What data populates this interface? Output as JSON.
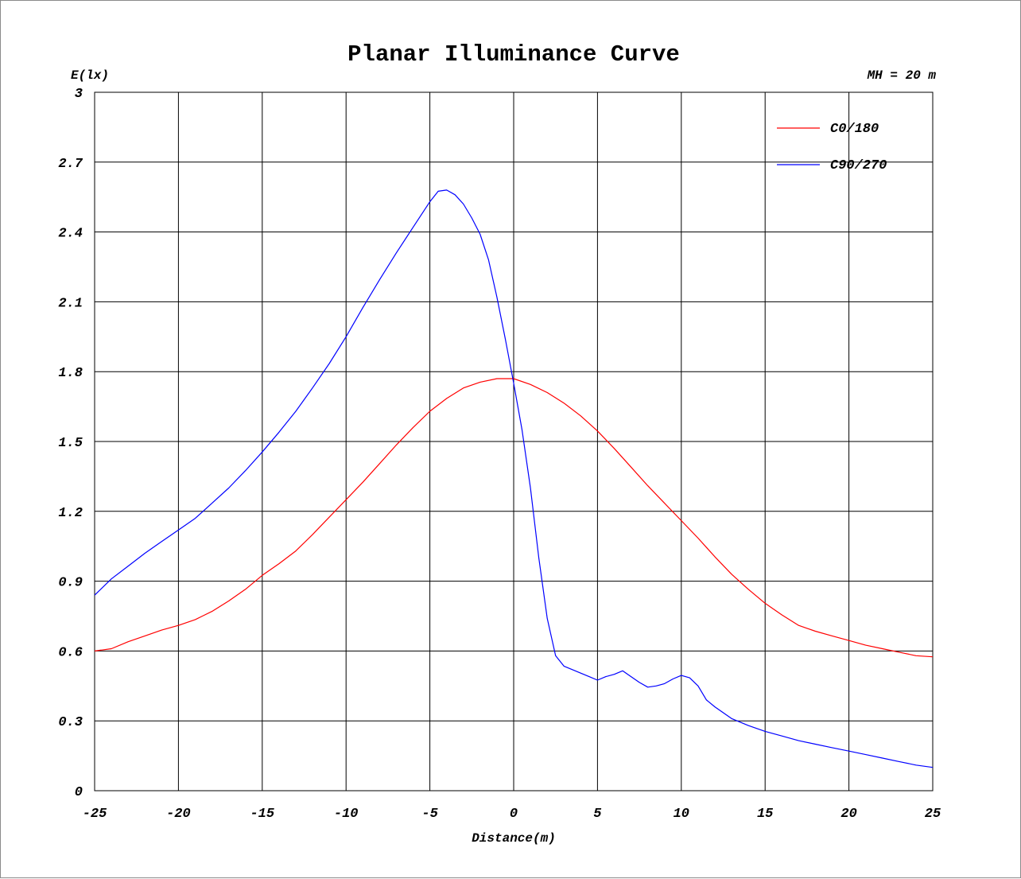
{
  "chart_data": {
    "type": "line",
    "title": "Planar Illuminance Curve",
    "ylabel": "E(lx)",
    "xlabel": "Distance(m)",
    "annotation": "MH = 20 m",
    "xlim": [
      -25,
      25
    ],
    "ylim": [
      0,
      3
    ],
    "x_ticks": [
      -25,
      -20,
      -15,
      -10,
      -5,
      0,
      5,
      10,
      15,
      20,
      25
    ],
    "y_ticks": [
      "0",
      "0.3",
      "0.6",
      "0.9",
      "1.2",
      "1.5",
      "1.8",
      "2.1",
      "2.4",
      "2.7",
      "3"
    ],
    "grid": true,
    "legend_position": "top-right",
    "colors": {
      "background": "#ffffff",
      "grid": "#000000",
      "frame": "#8a8a8a"
    },
    "series": [
      {
        "name": "C0/180",
        "color": "#ff0000",
        "x": [
          -25,
          -24,
          -23,
          -22,
          -21,
          -20,
          -19,
          -18,
          -17,
          -16,
          -15,
          -14,
          -13,
          -12,
          -11,
          -10,
          -9,
          -8,
          -7,
          -6,
          -5,
          -4,
          -3,
          -2,
          -1,
          0,
          1,
          2,
          3,
          4,
          5,
          6,
          7,
          8,
          9,
          10,
          11,
          12,
          13,
          14,
          15,
          16,
          17,
          18,
          19,
          20,
          21,
          22,
          23,
          24,
          25
        ],
        "y": [
          0.6,
          0.61,
          0.64,
          0.665,
          0.69,
          0.71,
          0.735,
          0.77,
          0.815,
          0.865,
          0.925,
          0.975,
          1.03,
          1.1,
          1.175,
          1.25,
          1.325,
          1.405,
          1.485,
          1.56,
          1.63,
          1.685,
          1.73,
          1.755,
          1.77,
          1.77,
          1.745,
          1.71,
          1.665,
          1.61,
          1.545,
          1.47,
          1.39,
          1.31,
          1.235,
          1.16,
          1.085,
          1.005,
          0.93,
          0.865,
          0.805,
          0.755,
          0.71,
          0.685,
          0.665,
          0.645,
          0.625,
          0.61,
          0.595,
          0.58,
          0.575
        ]
      },
      {
        "name": "C90/270",
        "color": "#0000ff",
        "x": [
          -25,
          -24,
          -23,
          -22,
          -21,
          -20,
          -19,
          -18,
          -17,
          -16,
          -15,
          -14,
          -13,
          -12,
          -11,
          -10,
          -9,
          -8,
          -7,
          -6,
          -5,
          -4.5,
          -4,
          -3.5,
          -3,
          -2.5,
          -2,
          -1.5,
          -1,
          -0.5,
          0,
          0.5,
          1,
          1.5,
          2,
          2.5,
          3,
          3.5,
          4,
          4.5,
          5,
          5.5,
          6,
          6.5,
          7,
          7.5,
          8,
          8.5,
          9,
          9.5,
          10,
          10.5,
          11,
          11.5,
          12,
          13,
          14,
          15,
          16,
          17,
          18,
          19,
          20,
          21,
          22,
          23,
          24,
          25
        ],
        "y": [
          0.84,
          0.91,
          0.965,
          1.02,
          1.07,
          1.12,
          1.17,
          1.235,
          1.3,
          1.375,
          1.455,
          1.54,
          1.63,
          1.73,
          1.835,
          1.95,
          2.075,
          2.195,
          2.31,
          2.42,
          2.53,
          2.575,
          2.58,
          2.56,
          2.52,
          2.46,
          2.39,
          2.28,
          2.12,
          1.94,
          1.75,
          1.55,
          1.3,
          1.0,
          0.74,
          0.58,
          0.535,
          0.52,
          0.505,
          0.49,
          0.475,
          0.49,
          0.5,
          0.515,
          0.49,
          0.465,
          0.445,
          0.45,
          0.46,
          0.48,
          0.495,
          0.485,
          0.45,
          0.39,
          0.36,
          0.31,
          0.28,
          0.255,
          0.235,
          0.215,
          0.2,
          0.185,
          0.17,
          0.155,
          0.14,
          0.125,
          0.11,
          0.1
        ]
      }
    ]
  }
}
